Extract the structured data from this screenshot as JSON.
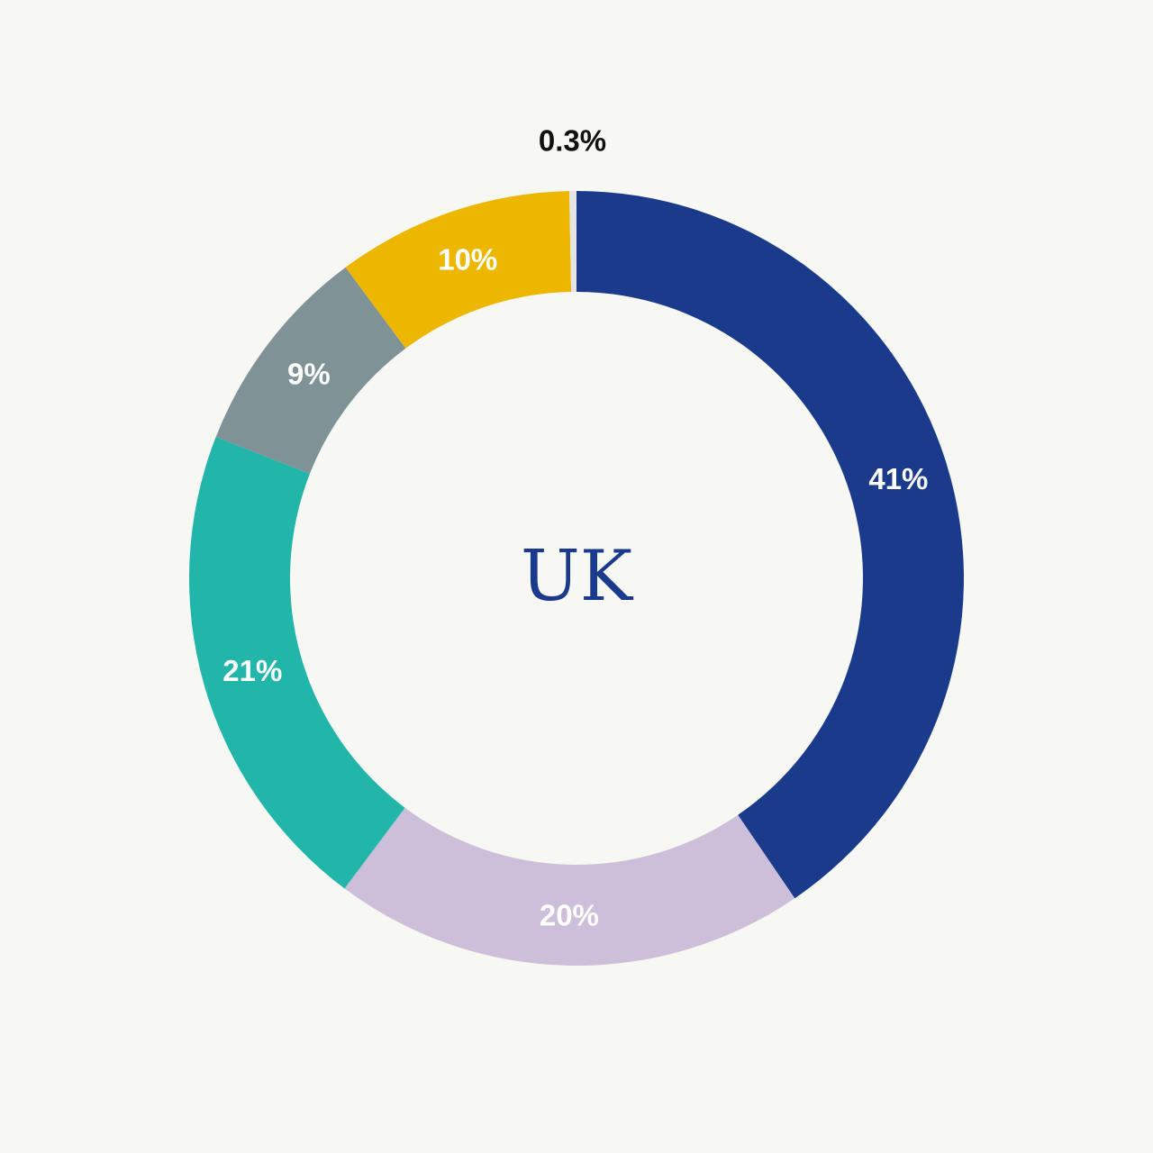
{
  "chart_data": {
    "type": "pie",
    "variant": "donut",
    "center_label": "UK",
    "slices": [
      {
        "label": "41%",
        "value": 41,
        "color": "#1a3a8c"
      },
      {
        "label": "20%",
        "value": 20,
        "color": "#cdbfd9"
      },
      {
        "label": "21%",
        "value": 21,
        "color": "#22b5aa"
      },
      {
        "label": "9%",
        "value": 9,
        "color": "#7f9396"
      },
      {
        "label": "10%",
        "value": 10,
        "color": "#edb700"
      },
      {
        "label": "0.3%",
        "value": 0.3,
        "color": "#e5e5e5"
      }
    ],
    "start_angle": "12 o'clock",
    "direction": "clockwise",
    "legend": "none"
  },
  "colors": {
    "background": "#f7f7f3",
    "center_text": "#1a3a8c"
  }
}
